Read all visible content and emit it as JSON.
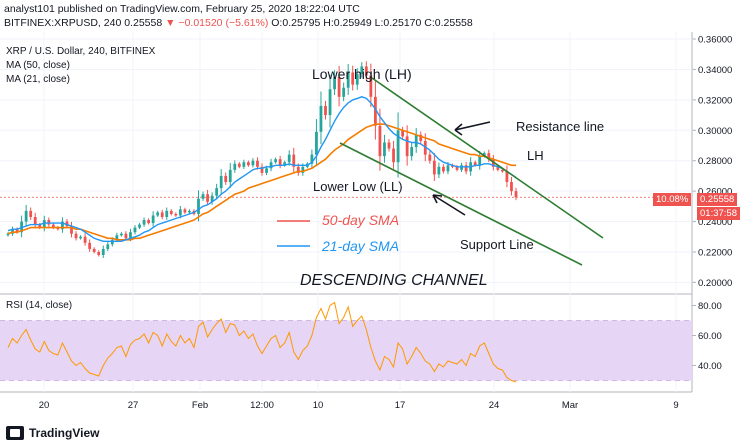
{
  "header": {
    "line1": "analyst101 published on TradingView.com, February 25, 2020 18:22:04 UTC",
    "symbol": "BITFINEX:XRPUSD, 240",
    "last": "0.25558",
    "change": "−0.01520 (−5.61%)",
    "open": "O:0.25795",
    "high": "H:0.25949",
    "low": "L:0.25170",
    "close": "C:0.25558"
  },
  "legend": {
    "title": "XRP / U.S. Dollar, 240, BITFINEX",
    "ma50": "MA (50, close)",
    "ma21": "MA (21, close)"
  },
  "annotations": {
    "lower_high": "Lower high (LH)",
    "lower_low": "Lower Low (LL)",
    "lh": "LH",
    "resistance": "Resistance line",
    "support": "Support Line",
    "sma50": "50-day SMA",
    "sma21": "21-day SMA",
    "channel": "DESCENDING CHANNEL"
  },
  "price_badges": {
    "pct": "10.08%",
    "price": "0.25558",
    "timer": "01:37:58"
  },
  "rsi": {
    "title": "RSI (14, close)"
  },
  "footer": {
    "brand": "TradingView"
  },
  "colors": {
    "up": "#26a69a",
    "down": "#ef5350",
    "ma50": "#f57c00",
    "ma21": "#2196f3",
    "rsi_line": "#ff9800",
    "rsi_band": "#e6d5f5",
    "trendline": "#2e7d32",
    "sma50_label": "#ef5350",
    "sma21_label": "#2196f3"
  },
  "chart_data": [
    {
      "type": "candlestick",
      "title": "XRP / U.S. Dollar, 240, BITFINEX",
      "ylim": [
        0.195,
        0.362
      ],
      "x_ticks": [
        "20",
        "27",
        "Feb",
        "12:00",
        "10",
        "17",
        "24",
        "Mar",
        "9"
      ],
      "y_ticks": [
        "0.36000",
        "0.34000",
        "0.32000",
        "0.30000",
        "0.28000",
        "0.26000",
        "0.24000",
        "0.22000",
        "0.20000"
      ],
      "close": [
        0.232,
        0.235,
        0.233,
        0.24,
        0.247,
        0.243,
        0.238,
        0.236,
        0.241,
        0.238,
        0.236,
        0.235,
        0.24,
        0.237,
        0.232,
        0.229,
        0.23,
        0.226,
        0.222,
        0.22,
        0.218,
        0.222,
        0.225,
        0.228,
        0.231,
        0.232,
        0.229,
        0.233,
        0.236,
        0.238,
        0.241,
        0.239,
        0.244,
        0.246,
        0.243,
        0.247,
        0.245,
        0.244,
        0.248,
        0.246,
        0.247,
        0.245,
        0.255,
        0.258,
        0.253,
        0.257,
        0.262,
        0.27,
        0.266,
        0.274,
        0.278,
        0.276,
        0.279,
        0.277,
        0.28,
        0.276,
        0.272,
        0.275,
        0.279,
        0.281,
        0.277,
        0.279,
        0.284,
        0.276,
        0.272,
        0.276,
        0.278,
        0.284,
        0.299,
        0.316,
        0.31,
        0.327,
        0.335,
        0.322,
        0.328,
        0.338,
        0.33,
        0.337,
        0.342,
        0.336,
        0.322,
        0.303,
        0.283,
        0.292,
        0.288,
        0.279,
        0.3,
        0.296,
        0.283,
        0.289,
        0.297,
        0.293,
        0.284,
        0.28,
        0.271,
        0.276,
        0.273,
        0.277,
        0.276,
        0.274,
        0.277,
        0.273,
        0.279,
        0.277,
        0.283,
        0.285,
        0.281,
        0.276,
        0.274,
        0.273,
        0.266,
        0.26,
        0.256
      ],
      "ma50": [
        0.232,
        0.233,
        0.233,
        0.234,
        0.235,
        0.236,
        0.236,
        0.236,
        0.236,
        0.236,
        0.236,
        0.236,
        0.236,
        0.236,
        0.236,
        0.235,
        0.235,
        0.234,
        0.233,
        0.232,
        0.231,
        0.23,
        0.229,
        0.229,
        0.228,
        0.228,
        0.228,
        0.228,
        0.229,
        0.229,
        0.23,
        0.231,
        0.232,
        0.233,
        0.234,
        0.235,
        0.236,
        0.237,
        0.238,
        0.239,
        0.24,
        0.241,
        0.243,
        0.245,
        0.246,
        0.248,
        0.25,
        0.252,
        0.254,
        0.256,
        0.258,
        0.259,
        0.26,
        0.262,
        0.263,
        0.264,
        0.265,
        0.266,
        0.267,
        0.268,
        0.269,
        0.27,
        0.271,
        0.272,
        0.273,
        0.273,
        0.274,
        0.275,
        0.277,
        0.279,
        0.281,
        0.284,
        0.287,
        0.289,
        0.291,
        0.294,
        0.296,
        0.298,
        0.3,
        0.302,
        0.303,
        0.304,
        0.304,
        0.304,
        0.303,
        0.302,
        0.301,
        0.3,
        0.299,
        0.298,
        0.297,
        0.296,
        0.295,
        0.294,
        0.293,
        0.291,
        0.29,
        0.289,
        0.288,
        0.287,
        0.286,
        0.285,
        0.284,
        0.284,
        0.283,
        0.283,
        0.282,
        0.281,
        0.28,
        0.279,
        0.278,
        0.277,
        0.277
      ],
      "ma21": [
        0.234,
        0.235,
        0.235,
        0.236,
        0.237,
        0.238,
        0.238,
        0.238,
        0.239,
        0.239,
        0.239,
        0.239,
        0.239,
        0.238,
        0.237,
        0.236,
        0.235,
        0.233,
        0.231,
        0.229,
        0.228,
        0.227,
        0.227,
        0.227,
        0.227,
        0.227,
        0.228,
        0.229,
        0.23,
        0.231,
        0.233,
        0.234,
        0.236,
        0.238,
        0.239,
        0.24,
        0.241,
        0.242,
        0.243,
        0.244,
        0.245,
        0.246,
        0.248,
        0.25,
        0.251,
        0.253,
        0.255,
        0.258,
        0.26,
        0.263,
        0.266,
        0.268,
        0.27,
        0.272,
        0.274,
        0.275,
        0.275,
        0.276,
        0.276,
        0.277,
        0.277,
        0.277,
        0.278,
        0.277,
        0.277,
        0.277,
        0.277,
        0.279,
        0.283,
        0.289,
        0.294,
        0.3,
        0.306,
        0.311,
        0.315,
        0.318,
        0.32,
        0.321,
        0.322,
        0.321,
        0.318,
        0.314,
        0.309,
        0.305,
        0.301,
        0.298,
        0.296,
        0.294,
        0.293,
        0.292,
        0.292,
        0.291,
        0.289,
        0.287,
        0.284,
        0.281,
        0.279,
        0.278,
        0.277,
        0.276,
        0.276,
        0.276,
        0.276,
        0.277,
        0.277,
        0.278,
        0.278,
        0.277,
        0.276,
        0.275,
        0.273,
        0.271,
        0.269
      ]
    },
    {
      "type": "line",
      "title": "RSI (14, close)",
      "ylim": [
        25,
        85
      ],
      "y_ticks": [
        "80.00",
        "60.00",
        "40.00"
      ],
      "band": [
        30,
        70
      ],
      "values": [
        52,
        58,
        55,
        60,
        64,
        57,
        51,
        49,
        56,
        50,
        48,
        47,
        55,
        49,
        43,
        40,
        42,
        38,
        35,
        34,
        33,
        40,
        45,
        48,
        52,
        53,
        46,
        54,
        57,
        58,
        61,
        55,
        62,
        60,
        53,
        61,
        56,
        53,
        60,
        55,
        58,
        52,
        66,
        69,
        59,
        64,
        68,
        71,
        62,
        68,
        67,
        60,
        63,
        58,
        61,
        53,
        48,
        53,
        58,
        60,
        52,
        55,
        62,
        49,
        44,
        50,
        53,
        60,
        72,
        78,
        71,
        80,
        82,
        68,
        72,
        79,
        66,
        70,
        73,
        64,
        52,
        43,
        37,
        46,
        44,
        39,
        55,
        51,
        41,
        46,
        52,
        48,
        43,
        41,
        36,
        41,
        39,
        43,
        42,
        41,
        44,
        40,
        48,
        46,
        53,
        55,
        48,
        41,
        38,
        37,
        32,
        30,
        29
      ]
    }
  ]
}
